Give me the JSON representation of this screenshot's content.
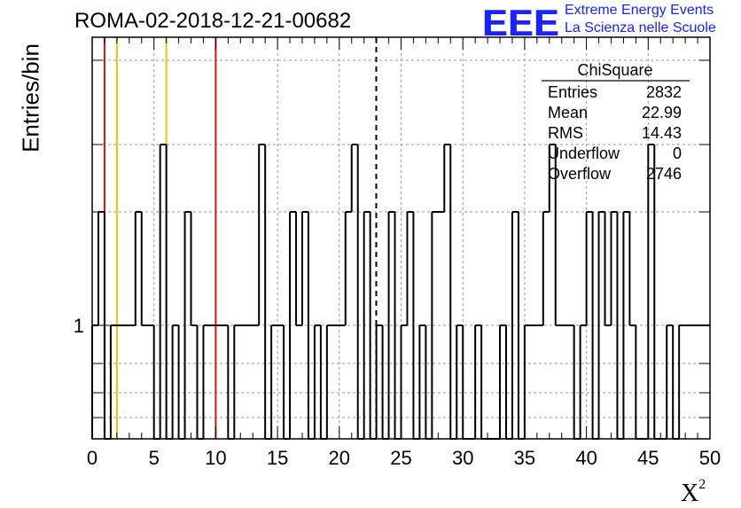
{
  "page_title": "ROMA-02-2018-12-21-00682",
  "logo": {
    "mark": "EEE",
    "line1": "Extreme Energy Events",
    "line2": "La Scienza nelle Scuole"
  },
  "colors": {
    "histogram": "#000000",
    "red_lines": "#dd1111",
    "yellow_lines": "#f2c200",
    "logo_blue": "#1a22ff"
  },
  "chart_data": {
    "type": "histogram",
    "xlabel": "X",
    "xlabel_sup": "2",
    "ylabel": "Entries/bin",
    "xlim": [
      0,
      50
    ],
    "ylog": true,
    "grid": true,
    "x_ticks": [
      "0",
      "5",
      "10",
      "15",
      "20",
      "25",
      "30",
      "35",
      "40",
      "45",
      "50"
    ],
    "y_ticks": [
      "1"
    ],
    "bin_width": 0.5,
    "steps": [
      {
        "x0": 0,
        "x1": 0.5,
        "y": 1
      },
      {
        "x0": 0.5,
        "x1": 1.0,
        "y": 2
      },
      {
        "x0": 1.0,
        "x1": 1.5,
        "y": 0
      },
      {
        "x0": 1.5,
        "x1": 3.5,
        "y": 1
      },
      {
        "x0": 3.5,
        "x1": 4.0,
        "y": 2
      },
      {
        "x0": 4.0,
        "x1": 5.0,
        "y": 1
      },
      {
        "x0": 5.0,
        "x1": 5.5,
        "y": 0
      },
      {
        "x0": 5.5,
        "x1": 6.0,
        "y": 3
      },
      {
        "x0": 6.0,
        "x1": 6.5,
        "y": 0
      },
      {
        "x0": 6.5,
        "x1": 7.0,
        "y": 1
      },
      {
        "x0": 7.0,
        "x1": 7.5,
        "y": 0
      },
      {
        "x0": 7.5,
        "x1": 8.0,
        "y": 2
      },
      {
        "x0": 8.0,
        "x1": 8.5,
        "y": 1
      },
      {
        "x0": 8.5,
        "x1": 9.0,
        "y": 0
      },
      {
        "x0": 9.0,
        "x1": 11.0,
        "y": 1
      },
      {
        "x0": 11.0,
        "x1": 11.5,
        "y": 0
      },
      {
        "x0": 11.5,
        "x1": 13.5,
        "y": 1
      },
      {
        "x0": 13.5,
        "x1": 14.0,
        "y": 3
      },
      {
        "x0": 14.0,
        "x1": 14.5,
        "y": 0
      },
      {
        "x0": 14.5,
        "x1": 15.5,
        "y": 1
      },
      {
        "x0": 15.5,
        "x1": 16.0,
        "y": 0
      },
      {
        "x0": 16.0,
        "x1": 16.5,
        "y": 2
      },
      {
        "x0": 16.5,
        "x1": 17.0,
        "y": 1
      },
      {
        "x0": 17.0,
        "x1": 17.5,
        "y": 2
      },
      {
        "x0": 17.5,
        "x1": 18.0,
        "y": 0
      },
      {
        "x0": 18.0,
        "x1": 18.5,
        "y": 1
      },
      {
        "x0": 18.5,
        "x1": 19.0,
        "y": 0
      },
      {
        "x0": 19.0,
        "x1": 20.5,
        "y": 1
      },
      {
        "x0": 20.5,
        "x1": 21.0,
        "y": 2
      },
      {
        "x0": 21.0,
        "x1": 21.5,
        "y": 3
      },
      {
        "x0": 21.5,
        "x1": 22.0,
        "y": 0
      },
      {
        "x0": 22.0,
        "x1": 22.5,
        "y": 2
      },
      {
        "x0": 22.5,
        "x1": 23.0,
        "y": 0
      },
      {
        "x0": 23.0,
        "x1": 23.5,
        "y": 1
      },
      {
        "x0": 23.5,
        "x1": 24.0,
        "y": 0
      },
      {
        "x0": 24.0,
        "x1": 24.5,
        "y": 2
      },
      {
        "x0": 24.5,
        "x1": 25.0,
        "y": 0
      },
      {
        "x0": 25.0,
        "x1": 25.5,
        "y": 1
      },
      {
        "x0": 25.5,
        "x1": 26.0,
        "y": 2
      },
      {
        "x0": 26.0,
        "x1": 26.5,
        "y": 0
      },
      {
        "x0": 26.5,
        "x1": 27.0,
        "y": 1
      },
      {
        "x0": 27.0,
        "x1": 27.5,
        "y": 0
      },
      {
        "x0": 27.5,
        "x1": 28.5,
        "y": 2
      },
      {
        "x0": 28.5,
        "x1": 29.0,
        "y": 3
      },
      {
        "x0": 29.0,
        "x1": 29.5,
        "y": 0
      },
      {
        "x0": 29.5,
        "x1": 30.0,
        "y": 1
      },
      {
        "x0": 30.0,
        "x1": 31.0,
        "y": 0
      },
      {
        "x0": 31.0,
        "x1": 31.5,
        "y": 1
      },
      {
        "x0": 31.5,
        "x1": 33.0,
        "y": 0
      },
      {
        "x0": 33.0,
        "x1": 33.5,
        "y": 1
      },
      {
        "x0": 33.5,
        "x1": 34.0,
        "y": 0
      },
      {
        "x0": 34.0,
        "x1": 34.5,
        "y": 2
      },
      {
        "x0": 34.5,
        "x1": 35.0,
        "y": 0
      },
      {
        "x0": 35.0,
        "x1": 36.5,
        "y": 1
      },
      {
        "x0": 36.5,
        "x1": 37.0,
        "y": 2
      },
      {
        "x0": 37.0,
        "x1": 37.5,
        "y": 3
      },
      {
        "x0": 37.5,
        "x1": 39.0,
        "y": 1
      },
      {
        "x0": 39.0,
        "x1": 39.5,
        "y": 0
      },
      {
        "x0": 39.5,
        "x1": 40.0,
        "y": 1
      },
      {
        "x0": 40.0,
        "x1": 40.5,
        "y": 2
      },
      {
        "x0": 40.5,
        "x1": 41.0,
        "y": 0
      },
      {
        "x0": 41.0,
        "x1": 41.5,
        "y": 2
      },
      {
        "x0": 41.5,
        "x1": 42.0,
        "y": 1
      },
      {
        "x0": 42.0,
        "x1": 42.5,
        "y": 2
      },
      {
        "x0": 42.5,
        "x1": 43.0,
        "y": 0
      },
      {
        "x0": 43.0,
        "x1": 43.5,
        "y": 2
      },
      {
        "x0": 43.5,
        "x1": 44.0,
        "y": 1
      },
      {
        "x0": 44.0,
        "x1": 45.0,
        "y": 0
      },
      {
        "x0": 45.0,
        "x1": 45.5,
        "y": 3
      },
      {
        "x0": 45.5,
        "x1": 46.5,
        "y": 0
      },
      {
        "x0": 46.5,
        "x1": 47.0,
        "y": 1
      },
      {
        "x0": 47.0,
        "x1": 47.5,
        "y": 0
      },
      {
        "x0": 47.5,
        "x1": 50.0,
        "y": 1
      }
    ],
    "reference_lines": [
      {
        "x": 1.0,
        "color": "red"
      },
      {
        "x": 2.0,
        "color": "yellow"
      },
      {
        "x": 6.0,
        "color": "yellow"
      },
      {
        "x": 10.0,
        "color": "red"
      },
      {
        "x": 22.99,
        "color": "black-dashed"
      }
    ],
    "stats_box": {
      "title": "ChiSquare",
      "rows": [
        {
          "label": "Entries",
          "value": "2832"
        },
        {
          "label": "Mean",
          "value": "22.99"
        },
        {
          "label": "RMS",
          "value": "14.43"
        },
        {
          "label": "Underflow",
          "value": "0"
        },
        {
          "label": "Overflow",
          "value": "2746"
        }
      ]
    }
  }
}
